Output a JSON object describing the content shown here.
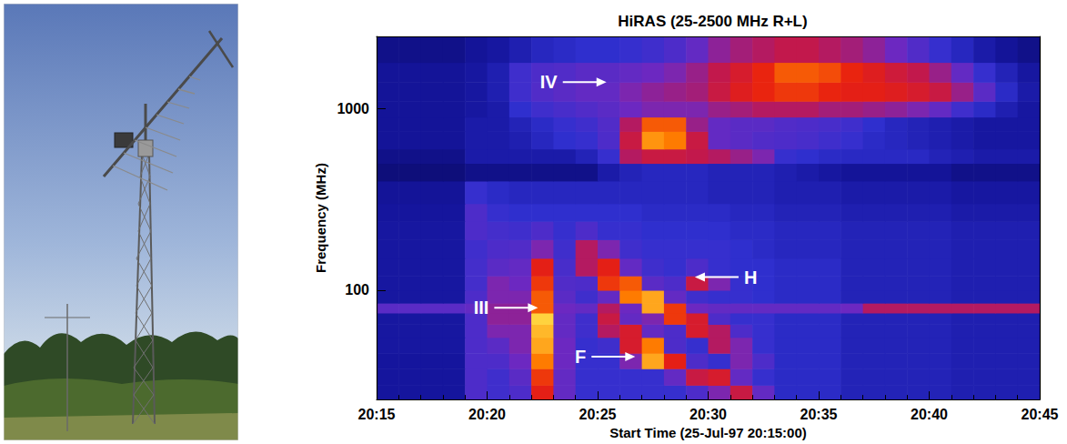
{
  "chart_data": {
    "type": "heatmap",
    "title": "HiRAS (25-2500 MHz R+L)",
    "x_label": "Start Time (25-Jul-97 20:15:00)",
    "y_label": "Frequency (MHz)",
    "log": "y",
    "grid": false,
    "xlim": [
      1215,
      1245
    ],
    "xticks": [
      {
        "value": 1215,
        "label": "20:15"
      },
      {
        "value": 1220,
        "label": "20:20"
      },
      {
        "value": 1225,
        "label": "20:25"
      },
      {
        "value": 1230,
        "label": "20:30"
      },
      {
        "value": 1235,
        "label": "20:35"
      },
      {
        "value": 1240,
        "label": "20:40"
      },
      {
        "value": 1245,
        "label": "20:45"
      }
    ],
    "ylim": [
      25,
      2500
    ],
    "yticks": [
      100,
      1000
    ],
    "time_edges": [
      1215,
      1216,
      1217,
      1218,
      1219,
      1220,
      1221,
      1222,
      1223,
      1224,
      1225,
      1226,
      1227,
      1228,
      1229,
      1230,
      1231,
      1232,
      1233,
      1234,
      1235,
      1236,
      1237,
      1238,
      1239,
      1240,
      1241,
      1242,
      1243,
      1244,
      1245
    ],
    "freq_edges": [
      25,
      30,
      37,
      45,
      55,
      65,
      75,
      85,
      100,
      120,
      150,
      190,
      240,
      300,
      400,
      500,
      600,
      750,
      900,
      1100,
      1400,
      1800,
      2500
    ],
    "intensity_range": [
      0,
      100
    ],
    "intensity": [
      [
        15,
        15,
        15,
        15,
        35,
        32,
        35,
        70,
        40,
        30,
        30,
        30,
        30,
        30,
        35,
        45,
        60,
        40,
        26,
        26,
        26,
        22,
        22,
        22,
        22,
        22,
        20,
        20,
        20,
        20
      ],
      [
        15,
        15,
        15,
        15,
        35,
        32,
        38,
        75,
        40,
        30,
        30,
        30,
        30,
        40,
        60,
        65,
        40,
        30,
        26,
        26,
        26,
        22,
        22,
        22,
        22,
        22,
        20,
        20,
        20,
        20
      ],
      [
        15,
        15,
        15,
        15,
        35,
        35,
        42,
        85,
        42,
        30,
        30,
        45,
        90,
        70,
        35,
        30,
        45,
        35,
        26,
        26,
        26,
        22,
        22,
        22,
        22,
        22,
        20,
        20,
        20,
        20
      ],
      [
        16,
        16,
        16,
        16,
        35,
        38,
        45,
        90,
        42,
        30,
        32,
        65,
        85,
        35,
        30,
        55,
        45,
        30,
        26,
        26,
        26,
        22,
        22,
        22,
        22,
        22,
        20,
        20,
        20,
        20
      ],
      [
        16,
        16,
        16,
        16,
        35,
        45,
        45,
        92,
        40,
        32,
        55,
        65,
        40,
        35,
        65,
        55,
        35,
        30,
        26,
        26,
        26,
        22,
        22,
        22,
        22,
        22,
        20,
        20,
        20,
        20
      ],
      [
        16,
        16,
        16,
        16,
        35,
        48,
        48,
        95,
        40,
        32,
        60,
        40,
        45,
        75,
        65,
        35,
        30,
        30,
        26,
        26,
        26,
        22,
        22,
        22,
        22,
        22,
        20,
        20,
        20,
        20
      ],
      [
        38,
        38,
        38,
        38,
        40,
        48,
        48,
        80,
        42,
        40,
        55,
        42,
        90,
        75,
        42,
        40,
        40,
        40,
        40,
        40,
        40,
        42,
        55,
        55,
        55,
        55,
        55,
        55,
        55,
        55
      ],
      [
        16,
        16,
        16,
        16,
        35,
        45,
        45,
        80,
        38,
        32,
        40,
        85,
        90,
        40,
        32,
        30,
        30,
        28,
        26,
        26,
        26,
        22,
        22,
        22,
        22,
        22,
        20,
        20,
        20,
        20
      ],
      [
        16,
        16,
        16,
        16,
        33,
        45,
        42,
        75,
        36,
        35,
        75,
        80,
        38,
        35,
        60,
        45,
        30,
        28,
        26,
        26,
        26,
        22,
        22,
        22,
        22,
        22,
        20,
        20,
        20,
        20
      ],
      [
        16,
        16,
        16,
        16,
        33,
        38,
        40,
        70,
        34,
        55,
        70,
        40,
        32,
        30,
        35,
        30,
        28,
        28,
        26,
        26,
        26,
        22,
        22,
        22,
        22,
        22,
        20,
        20,
        20,
        20
      ],
      [
        16,
        16,
        16,
        16,
        32,
        35,
        36,
        45,
        32,
        55,
        45,
        32,
        30,
        30,
        30,
        30,
        28,
        26,
        24,
        24,
        24,
        22,
        22,
        22,
        22,
        22,
        20,
        20,
        20,
        20
      ],
      [
        16,
        16,
        16,
        16,
        35,
        33,
        32,
        35,
        30,
        35,
        30,
        30,
        28,
        28,
        28,
        28,
        26,
        26,
        24,
        24,
        24,
        22,
        22,
        22,
        22,
        22,
        20,
        20,
        20,
        20
      ],
      [
        15,
        15,
        15,
        15,
        35,
        30,
        28,
        28,
        28,
        28,
        28,
        28,
        26,
        26,
        26,
        26,
        24,
        24,
        22,
        22,
        22,
        20,
        20,
        20,
        20,
        20,
        18,
        18,
        18,
        18
      ],
      [
        14,
        14,
        14,
        14,
        30,
        26,
        24,
        24,
        24,
        24,
        24,
        24,
        24,
        24,
        24,
        22,
        22,
        22,
        20,
        20,
        20,
        18,
        18,
        18,
        18,
        18,
        16,
        16,
        16,
        16
      ],
      [
        10,
        10,
        10,
        10,
        12,
        12,
        12,
        12,
        12,
        12,
        18,
        22,
        24,
        24,
        24,
        22,
        22,
        22,
        20,
        18,
        16,
        14,
        14,
        14,
        14,
        14,
        12,
        12,
        12,
        12
      ],
      [
        12,
        12,
        12,
        12,
        18,
        18,
        18,
        18,
        18,
        22,
        30,
        55,
        60,
        60,
        58,
        55,
        50,
        45,
        30,
        28,
        26,
        25,
        25,
        25,
        25,
        22,
        20,
        18,
        18,
        18
      ],
      [
        14,
        14,
        14,
        14,
        18,
        18,
        20,
        24,
        28,
        30,
        35,
        60,
        88,
        85,
        60,
        40,
        38,
        36,
        35,
        34,
        32,
        30,
        26,
        24,
        22,
        20,
        18,
        16,
        16,
        16
      ],
      [
        14,
        14,
        14,
        14,
        18,
        18,
        22,
        26,
        30,
        32,
        36,
        55,
        80,
        80,
        50,
        40,
        38,
        38,
        36,
        35,
        34,
        32,
        28,
        24,
        22,
        20,
        18,
        16,
        16,
        16
      ],
      [
        14,
        14,
        14,
        14,
        16,
        18,
        28,
        32,
        34,
        36,
        38,
        42,
        45,
        45,
        45,
        50,
        52,
        55,
        55,
        55,
        52,
        52,
        50,
        48,
        45,
        40,
        32,
        26,
        20,
        16
      ],
      [
        14,
        14,
        14,
        14,
        16,
        20,
        32,
        36,
        38,
        40,
        40,
        45,
        48,
        50,
        52,
        60,
        68,
        72,
        75,
        75,
        72,
        70,
        70,
        68,
        65,
        60,
        50,
        38,
        26,
        18
      ],
      [
        14,
        14,
        14,
        14,
        16,
        20,
        32,
        35,
        36,
        38,
        38,
        40,
        42,
        45,
        50,
        58,
        65,
        72,
        80,
        80,
        78,
        72,
        68,
        62,
        58,
        50,
        40,
        30,
        22,
        16
      ],
      [
        12,
        12,
        12,
        12,
        14,
        16,
        20,
        24,
        26,
        28,
        28,
        30,
        32,
        35,
        40,
        48,
        52,
        55,
        58,
        58,
        55,
        52,
        48,
        42,
        36,
        30,
        24,
        18,
        14,
        12
      ]
    ],
    "annotations": [
      {
        "text": "IV",
        "x": 1225.4,
        "y": 1400,
        "side": "left"
      },
      {
        "text": "III",
        "x": 1222.3,
        "y": 80,
        "side": "left"
      },
      {
        "text": "H",
        "x": 1229.4,
        "y": 118,
        "side": "right"
      },
      {
        "text": "F",
        "x": 1226.7,
        "y": 43,
        "side": "left"
      }
    ]
  }
}
